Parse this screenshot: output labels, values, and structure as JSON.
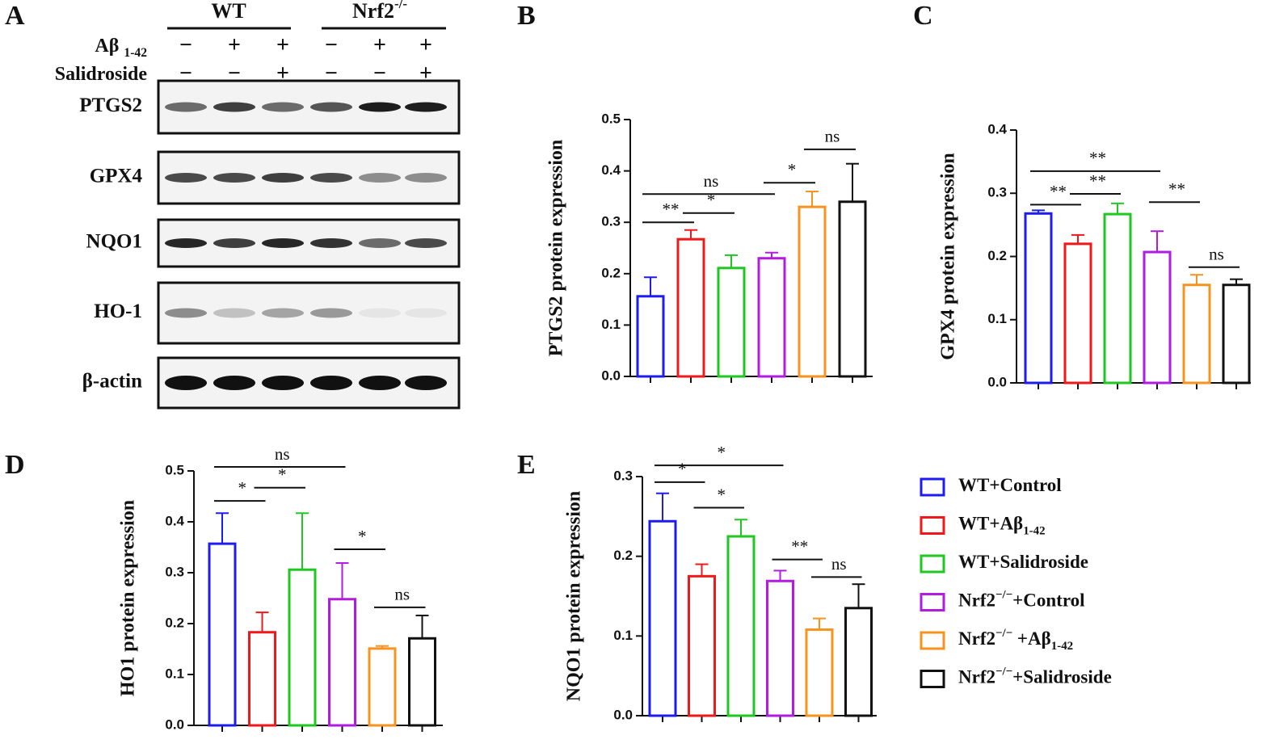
{
  "blot": {
    "panel": "A",
    "groups": [
      [
        {
          "text": "WT"
        }
      ],
      [
        {
          "text": "Nrf2"
        },
        {
          "text": "-/-",
          "shift": "super"
        }
      ]
    ],
    "treatments": [
      {
        "name": [
          {
            "text": "Aβ "
          },
          {
            "text": "1-42",
            "shift": "sub"
          }
        ],
        "signs": [
          "−",
          "+",
          "+",
          "−",
          "+",
          "+"
        ]
      },
      {
        "name": [
          {
            "text": "Salidroside"
          }
        ],
        "signs": [
          "−",
          "−",
          "+",
          "−",
          "−",
          "+"
        ]
      }
    ],
    "proteins": [
      "PTGS2",
      "GPX4",
      "NQO1",
      "HO-1",
      "β-actin"
    ]
  },
  "legend": [
    {
      "name": [
        {
          "text": "WT+Control"
        }
      ],
      "color": "#1c1cf0"
    },
    {
      "name": [
        {
          "text": "WT+Aβ"
        },
        {
          "text": "1-42",
          "shift": "sub"
        }
      ],
      "color": "#f01818"
    },
    {
      "name": [
        {
          "text": "WT+Salidroside"
        }
      ],
      "color": "#1ec81e"
    },
    {
      "name": [
        {
          "text": "Nrf2"
        },
        {
          "text": "−/−",
          "shift": "super"
        },
        {
          "text": "+Control"
        }
      ],
      "color": "#b21be0"
    },
    {
      "name": [
        {
          "text": "Nrf2"
        },
        {
          "text": "−/−",
          "shift": "super"
        },
        {
          "text": " +Aβ"
        },
        {
          "text": "1-42",
          "shift": "sub"
        }
      ],
      "color": "#f7931e"
    },
    {
      "name": [
        {
          "text": "Nrf2"
        },
        {
          "text": "−/−",
          "shift": "super"
        },
        {
          "text": "+Salidroside"
        }
      ],
      "color": "#111111"
    }
  ],
  "chart_data": [
    {
      "type": "bar",
      "panel": "B",
      "ylabel": "PTGS2 protein expression",
      "ylim": [
        0,
        0.5
      ],
      "yticks": [
        {
          "value": 0,
          "label": "0.0"
        },
        0.1,
        0.2,
        0.3,
        0.4,
        0.5
      ],
      "values": [
        0.156,
        0.267,
        0.211,
        0.23,
        0.33,
        0.34
      ],
      "errors": [
        0.037,
        0.018,
        0.025,
        0.011,
        0.03,
        0.074
      ],
      "annotations": [
        "**",
        "*",
        "ns",
        "*",
        "ns"
      ]
    },
    {
      "type": "bar",
      "panel": "C",
      "ylabel": "GPX4 protein expression",
      "ylim": [
        0,
        0.4
      ],
      "yticks": [
        {
          "value": 0,
          "label": "0.0"
        },
        0.1,
        0.2,
        0.3,
        0.4
      ],
      "values": [
        0.268,
        0.22,
        0.267,
        0.207,
        0.155,
        0.155
      ],
      "errors": [
        0.005,
        0.014,
        0.017,
        0.033,
        0.016,
        0.009
      ],
      "annotations": [
        "**",
        "**",
        "**",
        "**",
        "ns"
      ]
    },
    {
      "type": "bar",
      "panel": "D",
      "ylabel": "HO1 protein expression",
      "ylim": [
        0,
        0.5
      ],
      "yticks": [
        {
          "value": 0,
          "label": "0.0"
        },
        0.1,
        0.2,
        0.3,
        0.4,
        0.5
      ],
      "values": [
        0.357,
        0.183,
        0.306,
        0.248,
        0.151,
        0.171
      ],
      "errors": [
        0.06,
        0.039,
        0.111,
        0.071,
        0.005,
        0.045
      ],
      "annotations": [
        "*",
        "*",
        "ns",
        "*",
        "ns"
      ]
    },
    {
      "type": "bar",
      "panel": "E",
      "ylabel": "NQO1 protein expression",
      "ylim": [
        0,
        0.3
      ],
      "yticks": [
        {
          "value": 0,
          "label": "0.0"
        },
        0.1,
        0.2,
        0.3
      ],
      "values": [
        0.244,
        0.175,
        0.225,
        0.169,
        0.108,
        0.135
      ],
      "errors": [
        0.035,
        0.015,
        0.021,
        0.013,
        0.014,
        0.03
      ],
      "annotations": [
        "*",
        "*",
        "*",
        "**",
        "ns"
      ]
    }
  ]
}
